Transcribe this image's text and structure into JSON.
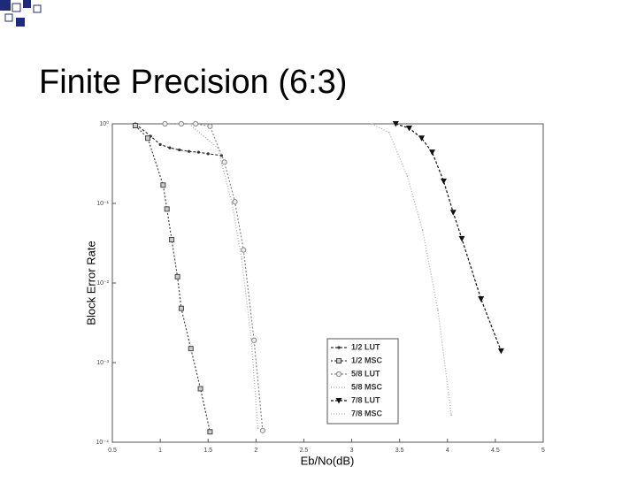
{
  "slide_title": "Finite Precision (6:3)",
  "chart_data": {
    "type": "line",
    "xlabel": "Eb/No(dB)",
    "ylabel": "Block Error Rate",
    "xlim": [
      0.5,
      5
    ],
    "xticks": [
      0.5,
      1,
      1.5,
      2,
      2.5,
      3,
      3.5,
      4,
      4.5,
      5
    ],
    "ylim": [
      0.0001,
      1
    ],
    "log_y": true,
    "yticks": [
      {
        "value": 0.0001,
        "label": "10⁻⁴"
      },
      {
        "value": 0.001,
        "label": "10⁻³"
      },
      {
        "value": 0.01,
        "label": "10⁻²"
      },
      {
        "value": 0.1,
        "label": "10⁻¹"
      },
      {
        "value": 1,
        "label": "10⁰"
      }
    ],
    "legend": "bottom-center",
    "series": [
      {
        "name": "1/2 LUT",
        "color": "#333333",
        "marker": "dot",
        "dash": "3 2",
        "x": [
          0.74,
          0.9,
          1.0,
          1.1,
          1.2,
          1.3,
          1.4,
          1.5,
          1.64
        ],
        "values": [
          1.0,
          0.7,
          0.55,
          0.5,
          0.47,
          0.45,
          0.44,
          0.42,
          0.4
        ]
      },
      {
        "name": "1/2 MSC",
        "color": "#444444",
        "marker": "square",
        "dash": "2 2",
        "x": [
          0.74,
          0.87,
          1.03,
          1.07,
          1.12,
          1.18,
          1.22,
          1.32,
          1.42,
          1.52
        ],
        "values": [
          0.95,
          0.66,
          0.17,
          0.085,
          0.035,
          0.012,
          0.0048,
          0.0015,
          0.00047,
          0.000135
        ]
      },
      {
        "name": "5/8 LUT",
        "color": "#888888",
        "marker": "circle",
        "dash": "2 2",
        "x": [
          1.05,
          1.22,
          1.37,
          1.52,
          1.67,
          1.78,
          1.87,
          1.98,
          2.07
        ],
        "values": [
          1.0,
          1.0,
          1.0,
          0.93,
          0.33,
          0.105,
          0.026,
          0.0019,
          0.00014
        ]
      },
      {
        "name": "5/8 MSC",
        "color": "#aaaaaa",
        "marker": "none",
        "dash": "1 2",
        "x": [
          1.3,
          1.6,
          1.75,
          1.85,
          1.95,
          2.02
        ],
        "values": [
          1.0,
          0.5,
          0.1,
          0.02,
          0.002,
          0.00015
        ]
      },
      {
        "name": "7/8 LUT",
        "color": "#111111",
        "marker": "triangle",
        "dash": "3 2",
        "x": [
          3.46,
          3.6,
          3.73,
          3.84,
          3.96,
          4.06,
          4.15,
          4.35,
          4.56
        ],
        "values": [
          1.0,
          0.88,
          0.66,
          0.44,
          0.19,
          0.077,
          0.036,
          0.0063,
          0.0014
        ]
      },
      {
        "name": "7/8 MSC",
        "color": "#aaaaaa",
        "marker": "none",
        "dash": "1 2",
        "x": [
          3.21,
          3.39,
          3.58,
          3.74,
          3.9,
          4.04
        ],
        "values": [
          1.0,
          0.78,
          0.22,
          0.046,
          0.0046,
          0.00022
        ]
      }
    ]
  }
}
